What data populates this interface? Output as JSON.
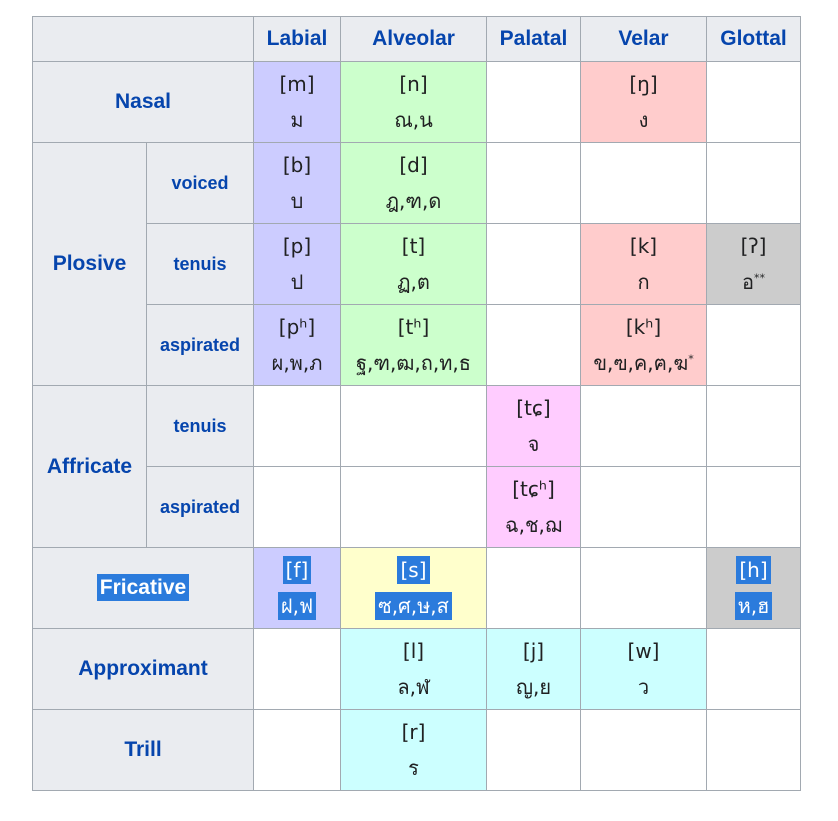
{
  "headers": {
    "corner": "",
    "labial": "Labial",
    "alveolar": "Alveolar",
    "palatal": "Palatal",
    "velar": "Velar",
    "glottal": "Glottal"
  },
  "rows": {
    "nasal": {
      "label": "Nasal",
      "labial": {
        "ipa": "[m]",
        "thai": "ม"
      },
      "alveolar": {
        "ipa": "[n]",
        "thai": "ณ,น"
      },
      "velar": {
        "ipa": "[ŋ]",
        "thai": "ง"
      }
    },
    "plosive": {
      "label": "Plosive",
      "voiced": {
        "label": "voiced",
        "labial": {
          "ipa": "[b]",
          "thai": "บ"
        },
        "alveolar": {
          "ipa": "[d]",
          "thai": "ฎ,ฑ,ด"
        }
      },
      "tenuis": {
        "label": "tenuis",
        "labial": {
          "ipa": "[p]",
          "thai": "ป"
        },
        "alveolar": {
          "ipa": "[t]",
          "thai": "ฏ,ต"
        },
        "velar": {
          "ipa": "[k]",
          "thai": "ก"
        },
        "glottal": {
          "ipa": "[ʔ]",
          "thai": "อ",
          "mark": "**"
        }
      },
      "aspirated": {
        "label": "aspirated",
        "labial": {
          "ipa": "[pʰ]",
          "thai": "ผ,พ,ภ"
        },
        "alveolar": {
          "ipa": "[tʰ]",
          "thai": "ฐ,ฑ,ฒ,ถ,ท,ธ"
        },
        "velar": {
          "ipa": "[kʰ]",
          "thai": "ข,ฃ,ค,ฅ,ฆ",
          "mark": "*"
        }
      }
    },
    "affricate": {
      "label": "Affricate",
      "tenuis": {
        "label": "tenuis",
        "palatal": {
          "ipa": "[tɕ]",
          "thai": "จ"
        }
      },
      "aspirated": {
        "label": "aspirated",
        "palatal": {
          "ipa": "[tɕʰ]",
          "thai": "ฉ,ช,ฌ"
        }
      }
    },
    "fricative": {
      "label": "Fricative",
      "labial": {
        "ipa": "[f]",
        "thai": "ฝ,ฟ"
      },
      "alveolar": {
        "ipa": "[s]",
        "thai": "ซ,ศ,ษ,ส"
      },
      "glottal": {
        "ipa": "[h]",
        "thai": "ห,ฮ"
      }
    },
    "approximant": {
      "label": "Approximant",
      "alveolar": {
        "ipa": "[l]",
        "thai": "ล,ฬ"
      },
      "palatal": {
        "ipa": "[j]",
        "thai": "ญ,ย"
      },
      "velar": {
        "ipa": "[w]",
        "thai": "ว"
      }
    },
    "trill": {
      "label": "Trill",
      "alveolar": {
        "ipa": "[r]",
        "thai": "ร"
      }
    }
  },
  "colors": {
    "labial": "#ccccff",
    "alveolar": "#ccffcc",
    "palatal": "#ffccff",
    "velar": "#ffcccc",
    "glottal": "#cccccc",
    "fricative_alveolar": "#ffffcc",
    "approximant": "#ccffff",
    "header_bg": "#eaecf0",
    "header_text": "#0645ad",
    "selection": "#2b7bdc"
  }
}
